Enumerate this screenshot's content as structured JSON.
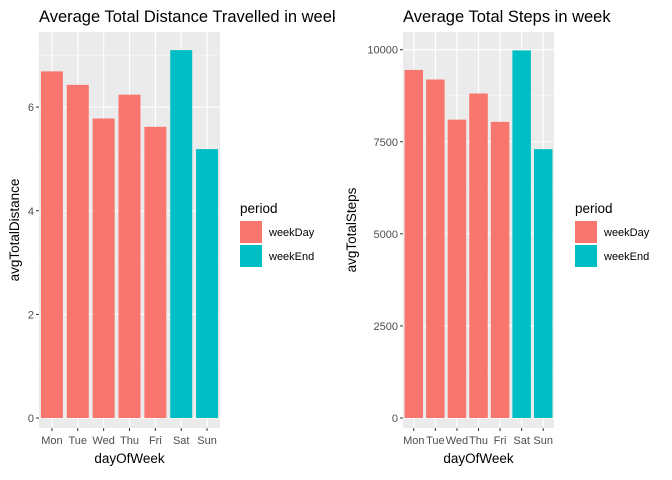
{
  "chart_data": [
    {
      "type": "bar",
      "title": "Average Total Distance Travelled in week",
      "xlabel": "dayOfWeek",
      "ylabel": "avgTotalDistance",
      "categories": [
        "Mon",
        "Tue",
        "Wed",
        "Thu",
        "Fri",
        "Sat",
        "Sun"
      ],
      "values": [
        6.69,
        6.43,
        5.78,
        6.24,
        5.62,
        7.1,
        5.19
      ],
      "groups": [
        "weekDay",
        "weekDay",
        "weekDay",
        "weekDay",
        "weekDay",
        "weekEnd",
        "weekEnd"
      ],
      "ylim": [
        0,
        7.45
      ],
      "yticks": [
        0,
        2,
        4,
        6
      ],
      "ytick_labels": [
        "0",
        "2",
        "4",
        "6"
      ],
      "grid": true,
      "legend": {
        "title": "period",
        "placement": "right",
        "items": [
          {
            "label": "weekDay",
            "color": "#F8766D"
          },
          {
            "label": "weekEnd",
            "color": "#00BFC4"
          }
        ]
      }
    },
    {
      "type": "bar",
      "title": "Average Total Steps in week",
      "xlabel": "dayOfWeek",
      "ylabel": "avgTotalSteps",
      "categories": [
        "Mon",
        "Tue",
        "Wed",
        "Thu",
        "Fri",
        "Sat",
        "Sun"
      ],
      "values": [
        9450,
        9190,
        8100,
        8810,
        8040,
        9980,
        7300
      ],
      "groups": [
        "weekDay",
        "weekDay",
        "weekDay",
        "weekDay",
        "weekDay",
        "weekEnd",
        "weekEnd"
      ],
      "ylim": [
        0,
        10480
      ],
      "yticks": [
        0,
        2500,
        5000,
        7500,
        10000
      ],
      "ytick_labels": [
        "0",
        "2500",
        "5000",
        "7500",
        "10000"
      ],
      "grid": true,
      "legend": {
        "title": "period",
        "placement": "right",
        "items": [
          {
            "label": "weekDay",
            "color": "#F8766D"
          },
          {
            "label": "weekEnd",
            "color": "#00BFC4"
          }
        ]
      }
    }
  ],
  "colors": {
    "panel_background": "#EBEBEB",
    "grid_major": "#FFFFFF",
    "grid_minor": "#F5F5F5",
    "tick": "#333333",
    "weekDay": "#F8766D",
    "weekEnd": "#00BFC4"
  }
}
